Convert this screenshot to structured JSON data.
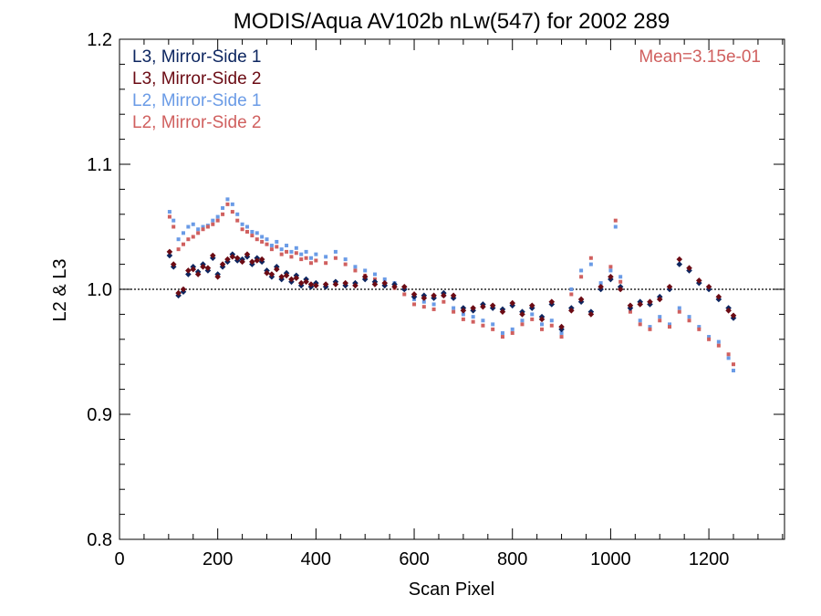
{
  "chart_data": {
    "type": "scatter",
    "title": "MODIS/Aqua AV102b nLw(547) for 2002 289",
    "xlabel": "Scan Pixel",
    "ylabel": "L2 & L3",
    "xlim": [
      0,
      1354
    ],
    "ylim": [
      0.8,
      1.2
    ],
    "xticks": [
      "0",
      "200",
      "400",
      "600",
      "800",
      "1000",
      "1200"
    ],
    "yticks": [
      "0.8",
      "0.9",
      "1.0",
      "1.1",
      "1.2"
    ],
    "annotation": "Mean=3.15e-01",
    "annotation_color": "#d0605f",
    "reference_line": 1.0,
    "legend_position": "top-left",
    "series": [
      {
        "name": "L3, Mirror-Side 1",
        "color": "#0d2660",
        "marker": "diamond",
        "x": [
          102,
          110,
          120,
          130,
          140,
          150,
          160,
          170,
          180,
          190,
          200,
          210,
          220,
          230,
          240,
          250,
          260,
          270,
          280,
          290,
          300,
          310,
          320,
          330,
          340,
          350,
          360,
          370,
          380,
          390,
          400,
          420,
          440,
          460,
          480,
          500,
          520,
          540,
          560,
          580,
          600,
          620,
          640,
          660,
          680,
          700,
          720,
          740,
          760,
          780,
          800,
          820,
          840,
          860,
          880,
          900,
          920,
          940,
          960,
          980,
          1000,
          1020,
          1040,
          1060,
          1080,
          1100,
          1120,
          1140,
          1160,
          1180,
          1200,
          1220,
          1240,
          1250
        ],
        "y": [
          1.027,
          1.018,
          0.995,
          0.998,
          1.012,
          1.018,
          1.014,
          1.02,
          1.015,
          1.025,
          1.012,
          1.018,
          1.022,
          1.028,
          1.023,
          1.024,
          1.026,
          1.02,
          1.025,
          1.022,
          1.015,
          1.01,
          1.018,
          1.008,
          1.013,
          1.006,
          1.011,
          1.003,
          1.008,
          1.002,
          1.005,
          1.002,
          1.006,
          1.003,
          1.005,
          1.008,
          1.006,
          1.003,
          1.004,
          1.0,
          0.994,
          0.995,
          0.993,
          0.997,
          0.993,
          0.985,
          0.983,
          0.988,
          0.985,
          0.984,
          0.987,
          0.982,
          0.985,
          0.978,
          0.988,
          0.968,
          0.985,
          0.99,
          0.982,
          1.0,
          1.008,
          1.002,
          0.985,
          0.99,
          0.988,
          0.994,
          1.0,
          1.02,
          1.015,
          1.005,
          1.0,
          0.992,
          0.985,
          0.977
        ]
      },
      {
        "name": "L3, Mirror-Side 2",
        "color": "#6b0b14",
        "marker": "diamond",
        "x": [
          102,
          110,
          120,
          130,
          140,
          150,
          160,
          170,
          180,
          190,
          200,
          210,
          220,
          230,
          240,
          250,
          260,
          270,
          280,
          290,
          300,
          310,
          320,
          330,
          340,
          350,
          360,
          370,
          380,
          390,
          400,
          420,
          440,
          460,
          480,
          500,
          520,
          540,
          560,
          580,
          600,
          620,
          640,
          660,
          680,
          700,
          720,
          740,
          760,
          780,
          800,
          820,
          840,
          860,
          880,
          900,
          920,
          940,
          960,
          980,
          1000,
          1020,
          1040,
          1060,
          1080,
          1100,
          1120,
          1140,
          1160,
          1180,
          1200,
          1220,
          1240,
          1250
        ],
        "y": [
          1.03,
          1.02,
          0.997,
          1.0,
          1.015,
          1.016,
          1.012,
          1.018,
          1.017,
          1.027,
          1.01,
          1.02,
          1.024,
          1.026,
          1.025,
          1.022,
          1.028,
          1.022,
          1.023,
          1.024,
          1.013,
          1.012,
          1.016,
          1.01,
          1.011,
          1.008,
          1.009,
          1.005,
          1.006,
          1.004,
          1.003,
          1.004,
          1.004,
          1.005,
          1.003,
          1.01,
          1.004,
          1.005,
          1.002,
          1.002,
          0.996,
          0.993,
          0.995,
          0.995,
          0.995,
          0.983,
          0.985,
          0.986,
          0.987,
          0.982,
          0.989,
          0.98,
          0.987,
          0.976,
          0.99,
          0.97,
          0.983,
          0.992,
          0.98,
          1.002,
          1.01,
          1.0,
          0.987,
          0.988,
          0.99,
          0.992,
          1.002,
          1.024,
          1.017,
          1.007,
          1.002,
          0.994,
          0.983,
          0.979
        ]
      },
      {
        "name": "L2, Mirror-Side 1",
        "color": "#6a9be6",
        "marker": "square",
        "x": [
          102,
          110,
          120,
          130,
          140,
          150,
          160,
          170,
          180,
          190,
          200,
          210,
          220,
          230,
          240,
          250,
          260,
          270,
          280,
          290,
          300,
          310,
          320,
          330,
          340,
          350,
          360,
          370,
          380,
          390,
          400,
          420,
          440,
          460,
          480,
          500,
          520,
          540,
          560,
          580,
          600,
          620,
          640,
          660,
          680,
          700,
          720,
          740,
          760,
          780,
          800,
          820,
          840,
          860,
          880,
          900,
          920,
          940,
          960,
          980,
          1000,
          1010,
          1020,
          1040,
          1060,
          1080,
          1100,
          1120,
          1140,
          1160,
          1180,
          1200,
          1220,
          1240,
          1250
        ],
        "y": [
          1.062,
          1.055,
          1.04,
          1.045,
          1.05,
          1.052,
          1.048,
          1.05,
          1.051,
          1.055,
          1.058,
          1.065,
          1.072,
          1.068,
          1.06,
          1.052,
          1.05,
          1.046,
          1.045,
          1.042,
          1.04,
          1.035,
          1.038,
          1.032,
          1.035,
          1.03,
          1.033,
          1.028,
          1.03,
          1.025,
          1.028,
          1.026,
          1.03,
          1.024,
          1.018,
          1.015,
          1.012,
          1.008,
          1.005,
          1.0,
          0.992,
          0.99,
          0.988,
          0.995,
          0.985,
          0.98,
          0.978,
          0.975,
          0.972,
          0.965,
          0.968,
          0.975,
          0.98,
          0.972,
          0.975,
          0.965,
          1.0,
          1.015,
          1.02,
          1.005,
          1.015,
          1.05,
          1.01,
          0.985,
          0.975,
          0.97,
          0.978,
          0.972,
          0.985,
          0.978,
          0.97,
          0.962,
          0.958,
          0.945,
          0.935
        ]
      },
      {
        "name": "L2, Mirror-Side 2",
        "color": "#d0605f",
        "marker": "square",
        "x": [
          102,
          110,
          120,
          130,
          140,
          150,
          160,
          170,
          180,
          190,
          200,
          210,
          220,
          230,
          240,
          250,
          260,
          270,
          280,
          290,
          300,
          310,
          320,
          330,
          340,
          350,
          360,
          370,
          380,
          390,
          400,
          420,
          440,
          460,
          480,
          500,
          520,
          540,
          560,
          580,
          600,
          620,
          640,
          660,
          680,
          700,
          720,
          740,
          760,
          780,
          800,
          820,
          840,
          860,
          880,
          900,
          920,
          940,
          960,
          980,
          1000,
          1010,
          1020,
          1040,
          1060,
          1080,
          1100,
          1120,
          1140,
          1160,
          1180,
          1200,
          1220,
          1240,
          1250
        ],
        "y": [
          1.058,
          1.05,
          1.032,
          1.036,
          1.04,
          1.042,
          1.045,
          1.048,
          1.05,
          1.052,
          1.055,
          1.06,
          1.068,
          1.062,
          1.055,
          1.048,
          1.046,
          1.043,
          1.04,
          1.038,
          1.036,
          1.032,
          1.034,
          1.028,
          1.03,
          1.026,
          1.029,
          1.024,
          1.025,
          1.021,
          1.023,
          1.021,
          1.025,
          1.02,
          1.015,
          1.011,
          1.008,
          1.004,
          1.001,
          0.996,
          0.988,
          0.986,
          0.984,
          0.99,
          0.982,
          0.976,
          0.974,
          0.971,
          0.968,
          0.962,
          0.965,
          0.972,
          0.976,
          0.968,
          0.971,
          0.962,
          0.996,
          1.01,
          1.025,
          1.002,
          1.018,
          1.055,
          1.006,
          0.982,
          0.972,
          0.968,
          0.975,
          0.97,
          0.982,
          0.975,
          0.968,
          0.96,
          0.955,
          0.948,
          0.94
        ]
      }
    ]
  }
}
